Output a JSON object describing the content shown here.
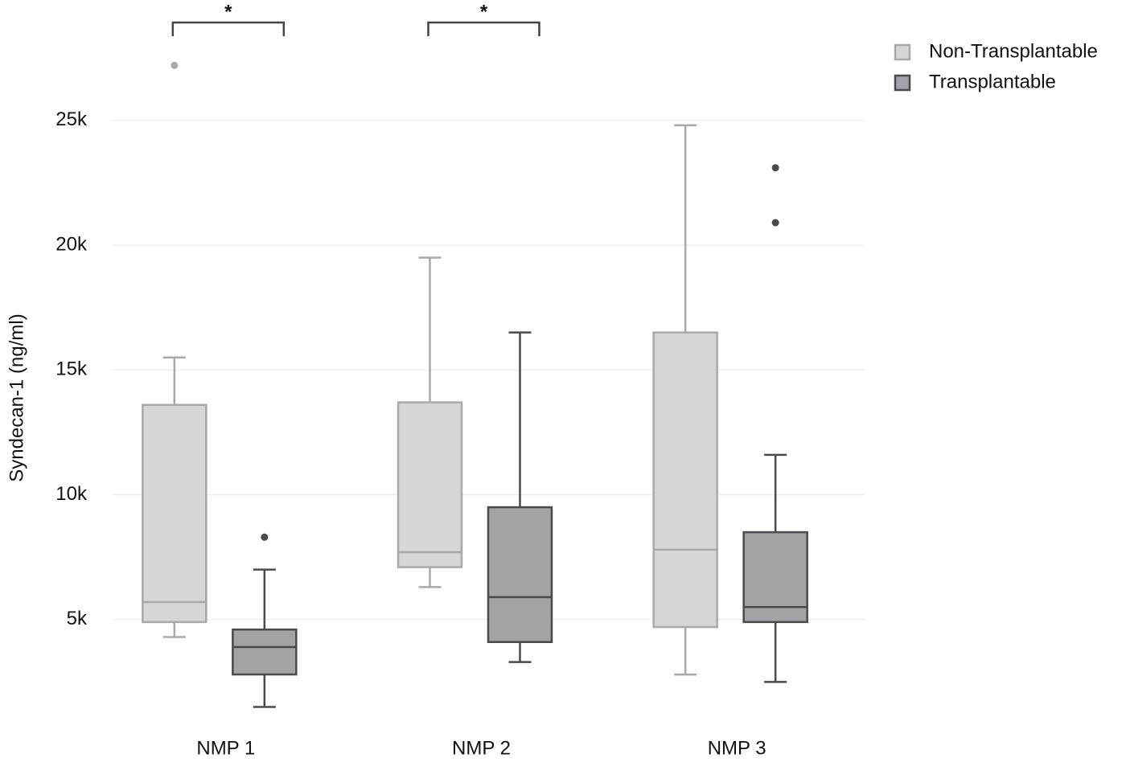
{
  "chart_data": {
    "type": "box",
    "y_label": "Syndecan-1 (ng/ml)",
    "categories": [
      "NMP 1",
      "NMP 2",
      "NMP 3"
    ],
    "significance": [
      "*",
      "*",
      null
    ],
    "ylim": [
      1000,
      28500
    ],
    "yticks": [
      {
        "value": 5000,
        "label": "5k"
      },
      {
        "value": 10000,
        "label": "10k"
      },
      {
        "value": 15000,
        "label": "15k"
      },
      {
        "value": 20000,
        "label": "20k"
      },
      {
        "value": 25000,
        "label": "25k"
      }
    ],
    "grid": true,
    "legend": "top-right",
    "series": [
      {
        "name": "Non-Transplantable",
        "color": "#d5d6d8",
        "line_color": "#a9a9ab",
        "whisker_low": [
          4300,
          6300,
          2800
        ],
        "q1": [
          4900,
          7100,
          4700
        ],
        "median": [
          5700,
          7700,
          7800
        ],
        "q3": [
          13600,
          13700,
          16500
        ],
        "whisker_high": [
          15500,
          19500,
          24800
        ],
        "outliers": [
          [
            27200
          ],
          [],
          []
        ]
      },
      {
        "name": "Transplantable",
        "color": "#a2a3a7",
        "line_color": "#4a4a4c",
        "whisker_low": [
          1500,
          3300,
          2500
        ],
        "q1": [
          2800,
          4100,
          4900
        ],
        "median": [
          3900,
          5900,
          5500
        ],
        "q3": [
          4600,
          9500,
          8500
        ],
        "whisker_high": [
          7000,
          16500,
          11600
        ],
        "outliers": [
          [
            8300
          ],
          [],
          [
            23100,
            20900
          ]
        ]
      }
    ]
  }
}
